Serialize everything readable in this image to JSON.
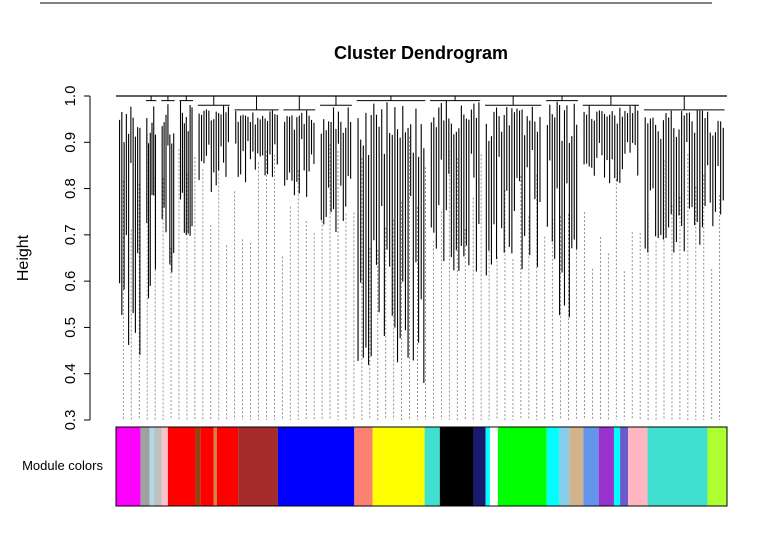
{
  "chart_data": {
    "type": "dendrogram",
    "title": "Cluster Dendrogram",
    "xlabel": "",
    "ylabel": "Height",
    "ylim": [
      0.3,
      1.0
    ],
    "yticks": [
      "0.3",
      "0.4",
      "0.5",
      "0.6",
      "0.7",
      "0.8",
      "0.9",
      "1.0"
    ],
    "module_label": "Module colors",
    "branches": [
      {
        "from": 0.0,
        "to": 0.045,
        "top": 1.0,
        "min": 0.41
      },
      {
        "from": 0.045,
        "to": 0.07,
        "top": 0.99,
        "min": 0.46
      },
      {
        "from": 0.07,
        "to": 0.1,
        "top": 0.99,
        "min": 0.56
      },
      {
        "from": 0.1,
        "to": 0.13,
        "top": 0.99,
        "min": 0.63
      },
      {
        "from": 0.13,
        "to": 0.19,
        "top": 0.98,
        "min": 0.78
      },
      {
        "from": 0.19,
        "to": 0.27,
        "top": 0.97,
        "min": 0.8
      },
      {
        "from": 0.27,
        "to": 0.33,
        "top": 0.97,
        "min": 0.77
      },
      {
        "from": 0.33,
        "to": 0.39,
        "top": 0.98,
        "min": 0.68
      },
      {
        "from": 0.39,
        "to": 0.51,
        "top": 0.99,
        "min": 0.34
      },
      {
        "from": 0.51,
        "to": 0.6,
        "top": 0.99,
        "min": 0.6
      },
      {
        "from": 0.6,
        "to": 0.7,
        "top": 0.98,
        "min": 0.58
      },
      {
        "from": 0.7,
        "to": 0.76,
        "top": 0.99,
        "min": 0.48
      },
      {
        "from": 0.76,
        "to": 0.86,
        "top": 0.98,
        "min": 0.8
      },
      {
        "from": 0.86,
        "to": 1.0,
        "top": 0.97,
        "min": 0.64
      }
    ],
    "module_colors": [
      {
        "color": "#ff00ff",
        "from": 0.0,
        "to": 0.04
      },
      {
        "color": "#a0a0a0",
        "from": 0.04,
        "to": 0.055
      },
      {
        "color": "#add8e6",
        "from": 0.055,
        "to": 0.062
      },
      {
        "color": "#c0c0c0",
        "from": 0.062,
        "to": 0.075
      },
      {
        "color": "#ffc0cb",
        "from": 0.075,
        "to": 0.085
      },
      {
        "color": "#ff0000",
        "from": 0.085,
        "to": 0.13
      },
      {
        "color": "#8b4513",
        "from": 0.13,
        "to": 0.138
      },
      {
        "color": "#ff0000",
        "from": 0.138,
        "to": 0.16
      },
      {
        "color": "#cd853f",
        "from": 0.16,
        "to": 0.165
      },
      {
        "color": "#ff0000",
        "from": 0.165,
        "to": 0.2
      },
      {
        "color": "#a52a2a",
        "from": 0.2,
        "to": 0.265
      },
      {
        "color": "#0000ff",
        "from": 0.265,
        "to": 0.39
      },
      {
        "color": "#fa8072",
        "from": 0.39,
        "to": 0.42
      },
      {
        "color": "#ffff00",
        "from": 0.42,
        "to": 0.505
      },
      {
        "color": "#40e0d0",
        "from": 0.505,
        "to": 0.53
      },
      {
        "color": "#000000",
        "from": 0.53,
        "to": 0.585
      },
      {
        "color": "#191970",
        "from": 0.585,
        "to": 0.605
      },
      {
        "color": "#00ffff",
        "from": 0.605,
        "to": 0.612
      },
      {
        "color": "#ffffff",
        "from": 0.612,
        "to": 0.625
      },
      {
        "color": "#00ff00",
        "from": 0.625,
        "to": 0.705
      },
      {
        "color": "#00ffff",
        "from": 0.705,
        "to": 0.725
      },
      {
        "color": "#87ceeb",
        "from": 0.725,
        "to": 0.742
      },
      {
        "color": "#d2b48c",
        "from": 0.742,
        "to": 0.765
      },
      {
        "color": "#6495ed",
        "from": 0.765,
        "to": 0.79
      },
      {
        "color": "#9932cc",
        "from": 0.79,
        "to": 0.815
      },
      {
        "color": "#00ffff",
        "from": 0.815,
        "to": 0.825
      },
      {
        "color": "#6a5acd",
        "from": 0.825,
        "to": 0.838
      },
      {
        "color": "#ffb6c1",
        "from": 0.838,
        "to": 0.87
      },
      {
        "color": "#40e0d0",
        "from": 0.87,
        "to": 0.968
      },
      {
        "color": "#adff2f",
        "from": 0.968,
        "to": 1.0
      }
    ],
    "grid": false,
    "legend": "none"
  }
}
